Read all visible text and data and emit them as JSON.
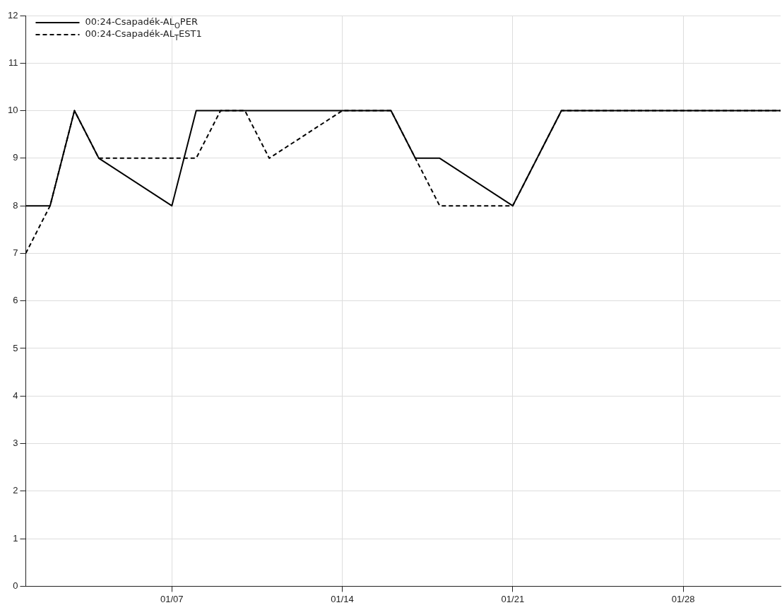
{
  "chart_data": {
    "type": "line",
    "x": [
      "--01-01",
      "--01-02",
      "--01-03",
      "--01-04",
      "--01-07",
      "--01-08",
      "--01-09",
      "--01-10",
      "--01-11",
      "--01-14",
      "--01-16",
      "--01-17",
      "--01-18",
      "--01-21",
      "--01-23",
      "--02-01"
    ],
    "series": [
      {
        "name": "00:24-Csapadék-AL$_{O}$PER",
        "color": "#000000",
        "line_style": "solid",
        "values": [
          8,
          8,
          10,
          9,
          8,
          10,
          10,
          10,
          10,
          10,
          10,
          9,
          9,
          8,
          10,
          10
        ]
      },
      {
        "name": "00:24-Csapadék-AL$_{T}$EST1",
        "color": "#000000",
        "line_style": "dashed",
        "values": [
          7,
          8,
          10,
          9,
          9,
          9,
          10,
          10,
          9,
          10,
          10,
          9,
          8,
          8,
          10,
          10
        ]
      }
    ],
    "xlim": [
      "--01-01",
      "--02-01"
    ],
    "xticks": [
      {
        "value": "--01-07",
        "label": "01/07"
      },
      {
        "value": "--01-14",
        "label": "01/14"
      },
      {
        "value": "--01-21",
        "label": "01/21"
      },
      {
        "value": "--01-28",
        "label": "01/28"
      }
    ],
    "ylim": [
      0,
      12
    ],
    "yticks": [
      0,
      1,
      2,
      3,
      4,
      5,
      6,
      7,
      8,
      9,
      10,
      11,
      12
    ],
    "grid": true,
    "legend": "top left",
    "marker": "none"
  }
}
